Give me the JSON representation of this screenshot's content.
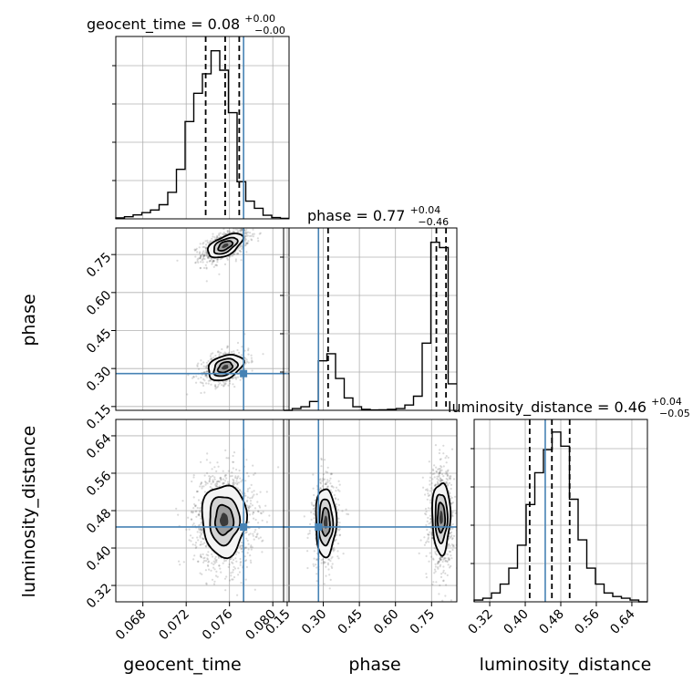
{
  "colors": {
    "truth": "#4682b4",
    "hist": "#000000",
    "quantile": "#000000",
    "grid": "#b0b0b0",
    "scatter": "#555555"
  },
  "chart_data": {
    "type": "corner",
    "parameters": [
      "geocent_time",
      "phase",
      "luminosity_distance"
    ],
    "truths": {
      "geocent_time": 0.0773,
      "phase": 0.28,
      "luminosity_distance": 0.445
    },
    "titles": [
      {
        "param": "geocent_time",
        "base": "geocent_time = 0.08",
        "sup": "+0.00",
        "sub": "−0.00"
      },
      {
        "param": "phase",
        "base": "phase = 0.77",
        "sup": "+0.04",
        "sub": "−0.46"
      },
      {
        "param": "luminosity_distance",
        "base": "luminosity_distance = 0.46",
        "sup": "+0.04",
        "sub": "−0.05"
      }
    ],
    "axis_labels": {
      "x": [
        "geocent_time",
        "phase",
        "luminosity_distance"
      ],
      "y": [
        "phase",
        "luminosity_distance"
      ]
    },
    "ranges": {
      "geocent_time": [
        0.0655,
        0.0815
      ],
      "phase": [
        0.135,
        0.855
      ],
      "luminosity_distance": [
        0.285,
        0.675
      ]
    },
    "ticks": {
      "geocent_time": {
        "values": [
          0.068,
          0.072,
          0.076,
          0.08
        ],
        "labels": [
          "0.068",
          "0.072",
          "0.076",
          "0.080"
        ]
      },
      "phase": {
        "values": [
          0.15,
          0.3,
          0.45,
          0.6,
          0.75
        ],
        "labels": [
          "0.15",
          "0.30",
          "0.45",
          "0.60",
          "0.75"
        ]
      },
      "luminosity_distance": {
        "values": [
          0.32,
          0.4,
          0.48,
          0.56,
          0.64
        ],
        "labels": [
          "0.32",
          "0.40",
          "0.48",
          "0.56",
          "0.64"
        ]
      }
    },
    "quantiles": {
      "geocent_time": [
        0.0738,
        0.0756,
        0.0769
      ],
      "phase": [
        0.32,
        0.77,
        0.81
      ],
      "luminosity_distance": [
        0.41,
        0.46,
        0.5
      ]
    },
    "histograms": {
      "geocent_time": {
        "edges": [
          0.0655,
          0.0663,
          0.0671,
          0.0679,
          0.0687,
          0.0695,
          0.0703,
          0.0711,
          0.0719,
          0.0727,
          0.0735,
          0.0743,
          0.0751,
          0.0759,
          0.0767,
          0.0775,
          0.0783,
          0.0791,
          0.0799,
          0.0807,
          0.0815
        ],
        "counts": [
          0.005,
          0.012,
          0.022,
          0.035,
          0.05,
          0.08,
          0.15,
          0.28,
          0.55,
          0.71,
          0.82,
          0.95,
          0.84,
          0.6,
          0.21,
          0.1,
          0.06,
          0.02,
          0.007,
          0.003
        ]
      },
      "phase": {
        "edges": [
          0.135,
          0.171,
          0.207,
          0.243,
          0.279,
          0.315,
          0.351,
          0.387,
          0.423,
          0.459,
          0.495,
          0.531,
          0.567,
          0.603,
          0.639,
          0.675,
          0.711,
          0.747,
          0.783,
          0.819,
          0.855
        ],
        "counts": [
          0.0,
          0.01,
          0.02,
          0.05,
          0.28,
          0.32,
          0.18,
          0.07,
          0.02,
          0.005,
          0.002,
          0.003,
          0.005,
          0.01,
          0.03,
          0.08,
          0.38,
          0.95,
          0.92,
          0.15
        ]
      },
      "luminosity_distance": {
        "edges": [
          0.285,
          0.3045,
          0.324,
          0.3435,
          0.363,
          0.3825,
          0.402,
          0.4215,
          0.441,
          0.4605,
          0.48,
          0.4995,
          0.519,
          0.5385,
          0.558,
          0.5775,
          0.597,
          0.6165,
          0.636,
          0.6555,
          0.675
        ],
        "counts": [
          0.01,
          0.02,
          0.05,
          0.1,
          0.19,
          0.32,
          0.55,
          0.73,
          0.86,
          0.96,
          0.88,
          0.58,
          0.35,
          0.19,
          0.1,
          0.05,
          0.03,
          0.02,
          0.01,
          0.0
        ]
      }
    },
    "clusters": [
      {
        "x": "geocent_time",
        "y": "phase",
        "components": [
          {
            "cx": 0.0756,
            "cy": 0.785,
            "sx": 0.00095,
            "sy": 0.028,
            "rho": 0.55,
            "w": 0.62
          },
          {
            "cx": 0.0756,
            "cy": 0.305,
            "sx": 0.00095,
            "sy": 0.03,
            "rho": 0.35,
            "w": 0.38
          }
        ]
      },
      {
        "x": "geocent_time",
        "y": "luminosity_distance",
        "components": [
          {
            "cx": 0.0755,
            "cy": 0.46,
            "sx": 0.0012,
            "sy": 0.045,
            "rho": 0.0,
            "w": 1.0
          }
        ]
      },
      {
        "x": "phase",
        "y": "luminosity_distance",
        "components": [
          {
            "cx": 0.79,
            "cy": 0.465,
            "sx": 0.022,
            "sy": 0.045,
            "rho": 0.0,
            "w": 0.62
          },
          {
            "cx": 0.31,
            "cy": 0.455,
            "sx": 0.025,
            "sy": 0.043,
            "rho": 0.0,
            "w": 0.38
          }
        ]
      }
    ]
  }
}
